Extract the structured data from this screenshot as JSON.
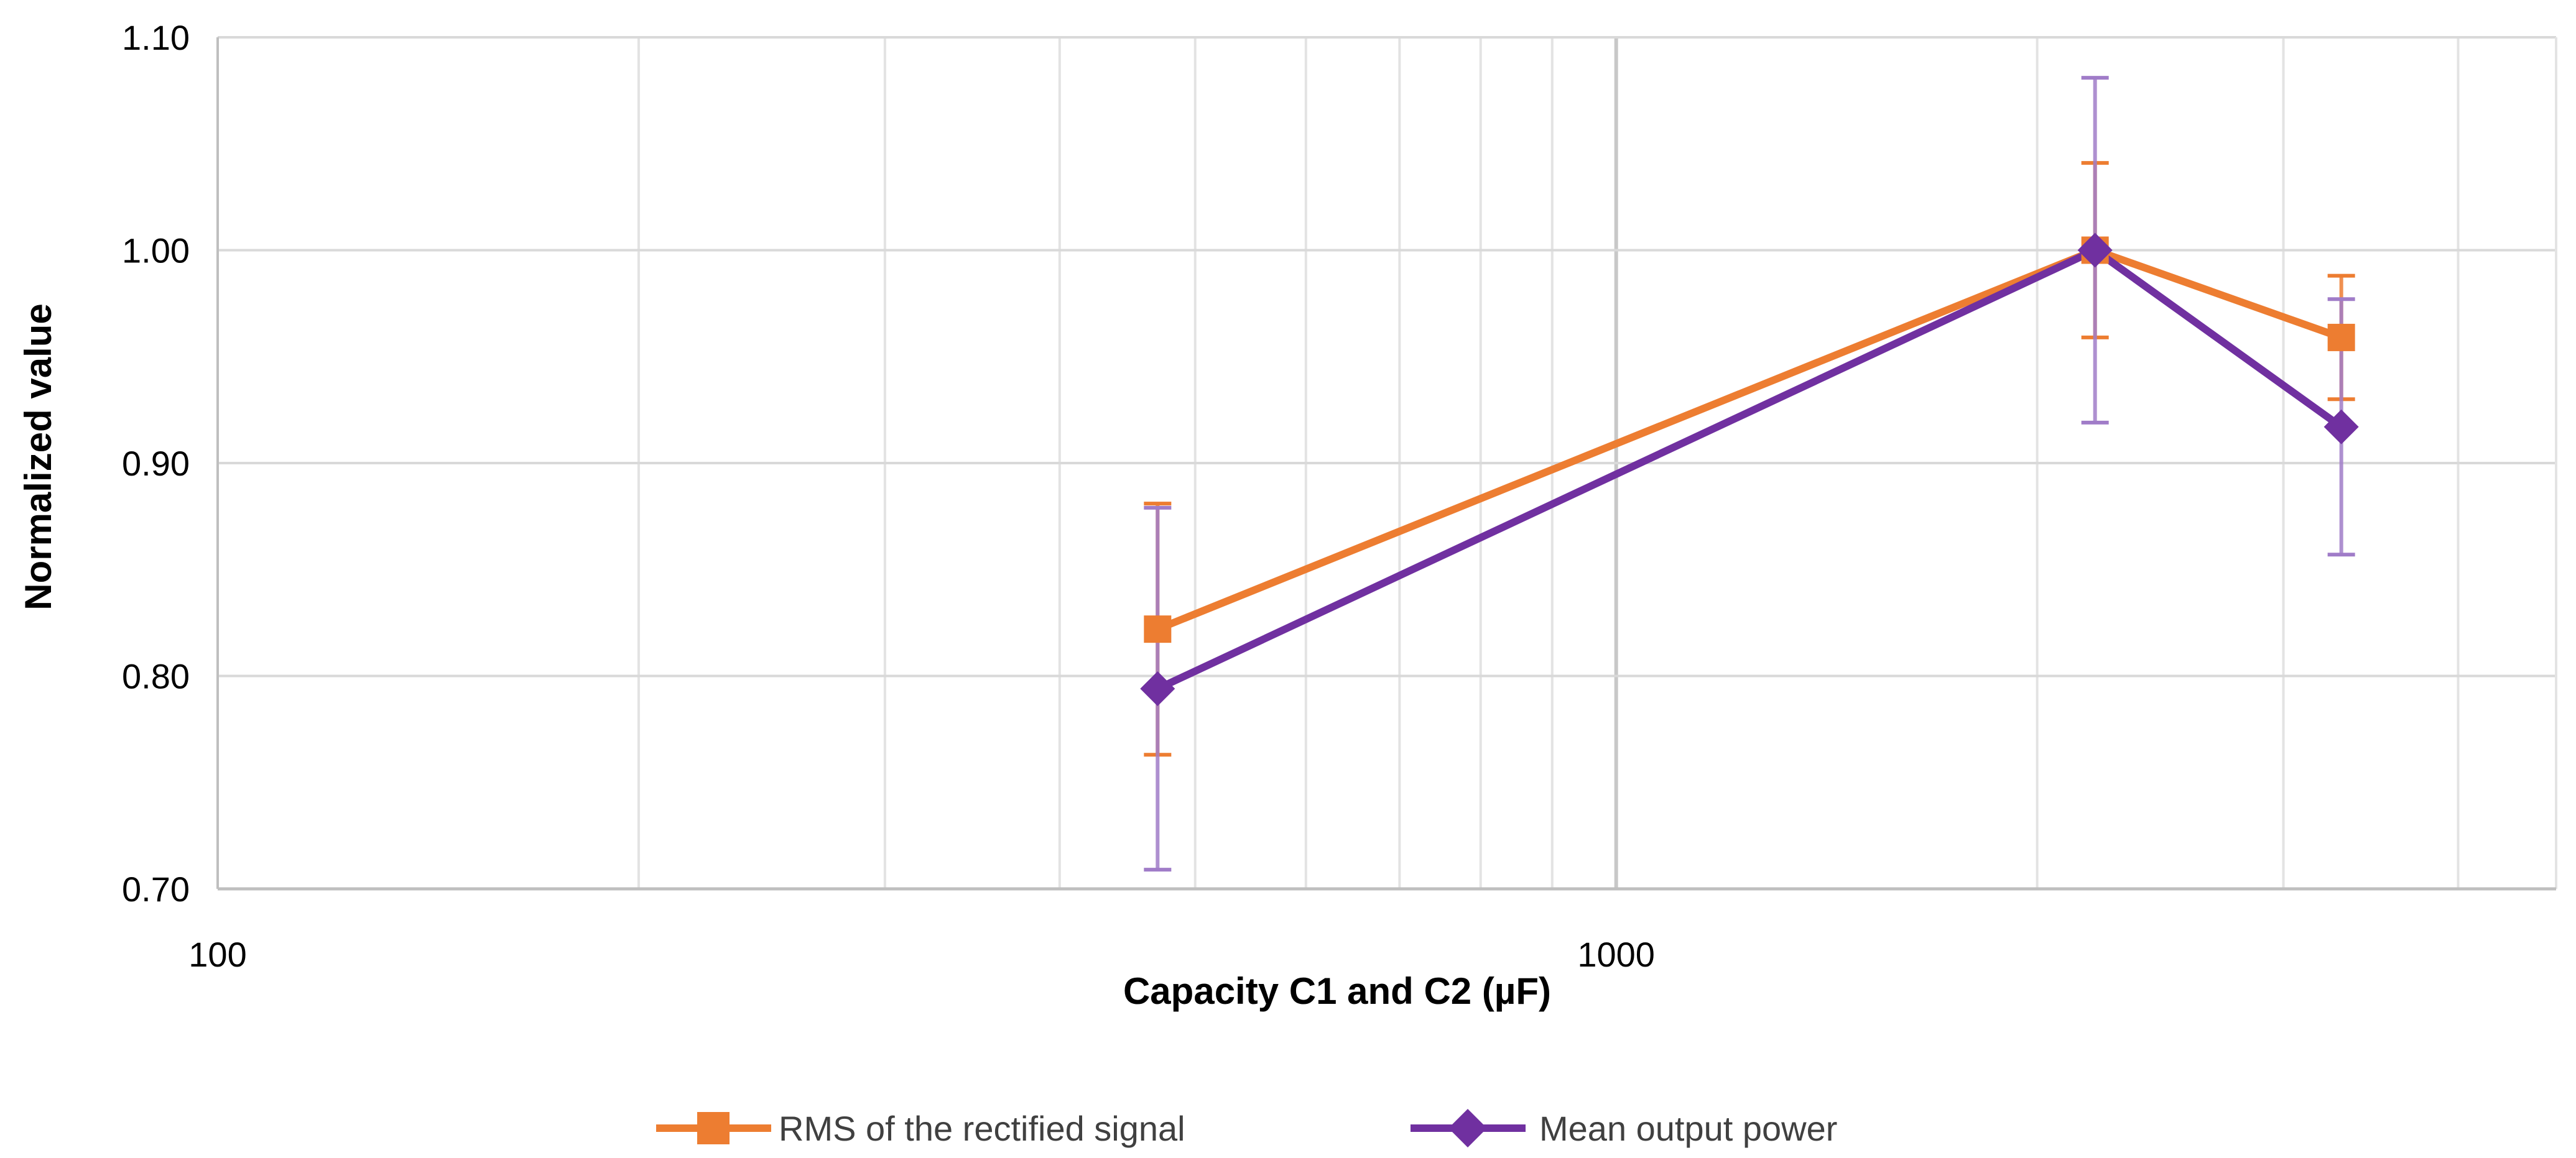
{
  "chart_data": {
    "type": "line",
    "title": "",
    "xlabel": "Capacity C1 and C2 (µF)",
    "ylabel": "Normalized value",
    "x_scale": "log",
    "xlim": [
      100,
      4700
    ],
    "ylim": [
      0.7,
      1.1
    ],
    "y_ticks": [
      0.7,
      0.8,
      0.9,
      1.0,
      1.1
    ],
    "y_tick_labels": [
      "0.70",
      "0.80",
      "0.90",
      "1.00",
      "1.10"
    ],
    "x_tick_labels": [
      "100",
      "1000"
    ],
    "x_ticks": [
      100,
      1000
    ],
    "grid": true,
    "legend_position": "bottom",
    "series": [
      {
        "name": "RMS of the rectified signal",
        "color": "#ED7D31",
        "marker": "square",
        "x": [
          470,
          2200,
          3300
        ],
        "y": [
          0.822,
          1.0,
          0.959
        ],
        "err_low": [
          0.763,
          0.959,
          0.93
        ],
        "err_high": [
          0.881,
          1.041,
          0.988
        ]
      },
      {
        "name": "Mean output power",
        "color": "#7030A0",
        "error_color": "#A07CC8",
        "marker": "diamond",
        "x": [
          470,
          2200,
          3300
        ],
        "y": [
          0.794,
          1.0,
          0.917
        ],
        "err_low": [
          0.709,
          0.919,
          0.857
        ],
        "err_high": [
          0.879,
          1.081,
          0.977
        ]
      }
    ]
  }
}
